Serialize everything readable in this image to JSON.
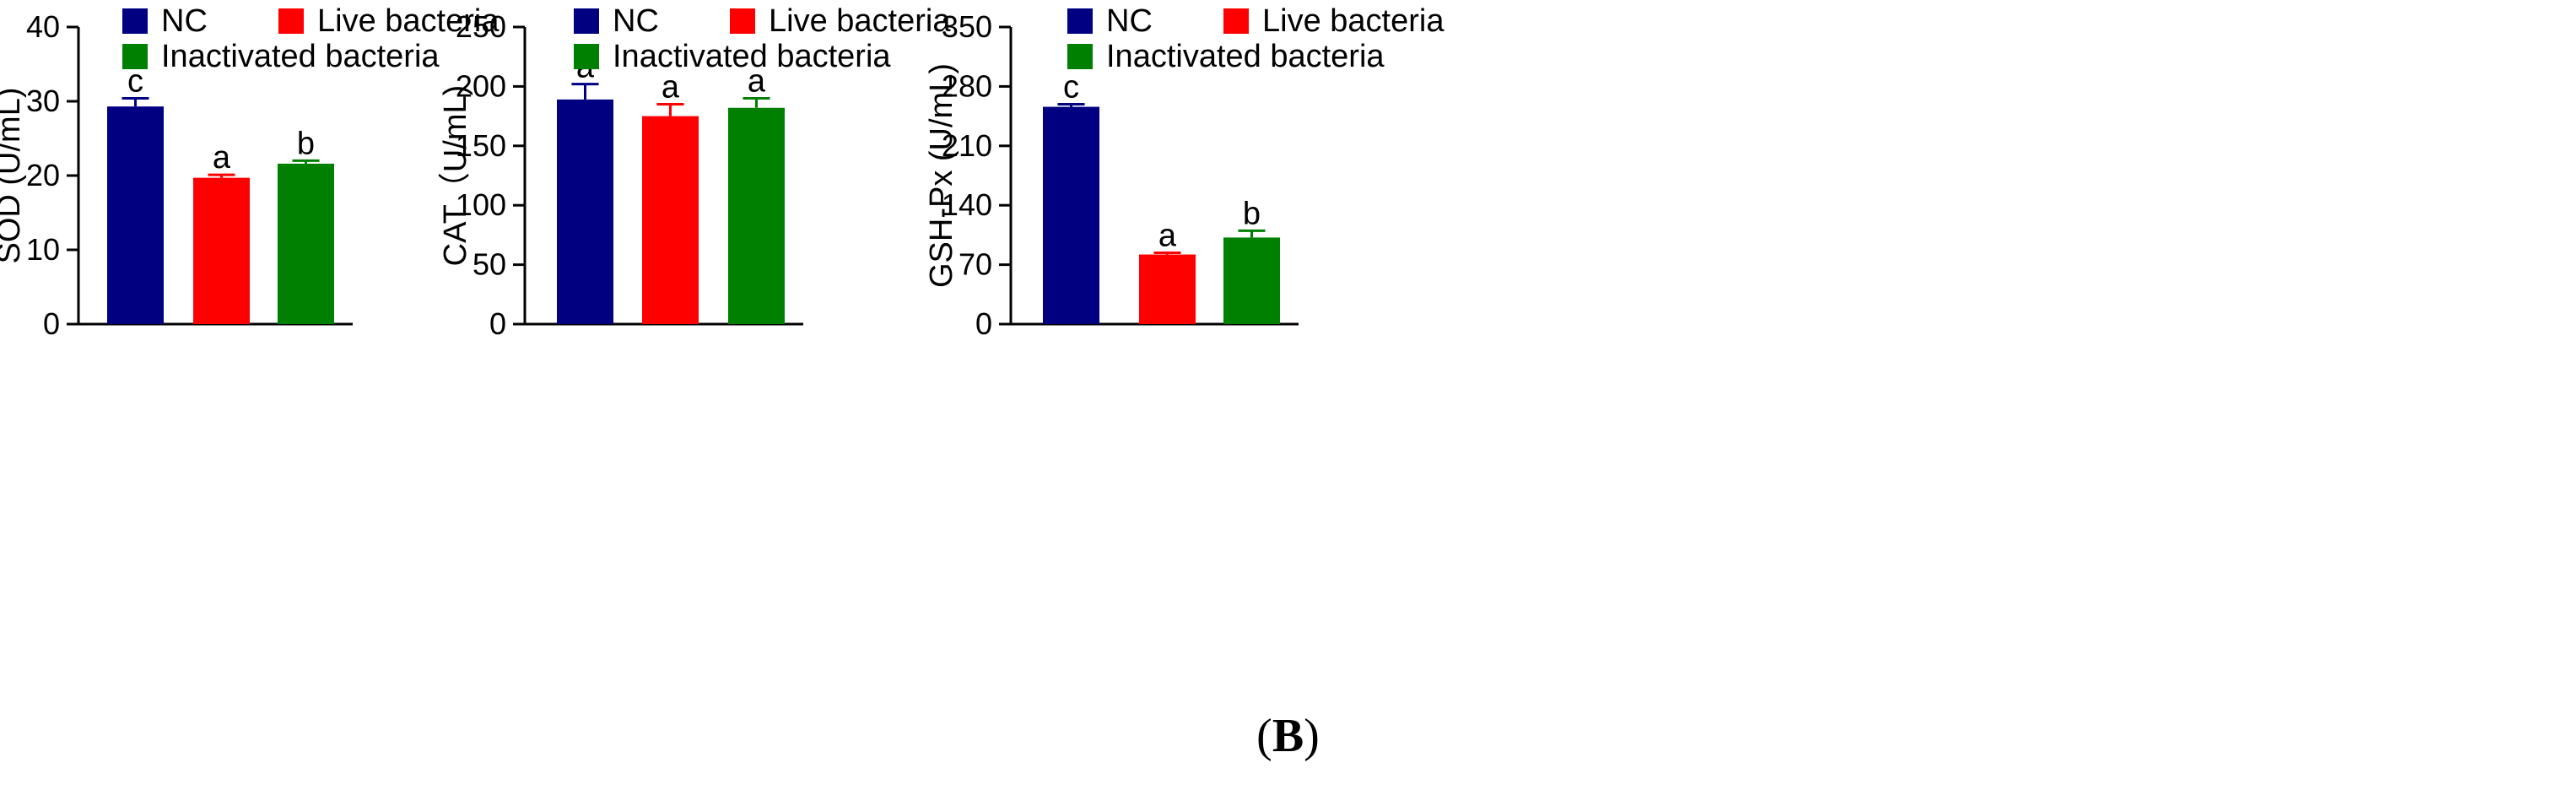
{
  "figure": {
    "panel_label_open": "(",
    "panel_label_letter": "B",
    "panel_label_close": ")"
  },
  "colors": {
    "NC": "#000080",
    "Live bacteria": "#ff0000",
    "Inactivated bacteria": "#008000",
    "axis": "#000000"
  },
  "legend": {
    "entries": [
      "NC",
      "Live bacteria",
      "Inactivated bacteria"
    ],
    "placement": "top-right"
  },
  "chart_data": [
    {
      "type": "bar",
      "ylabel": "SOD (U/mL)",
      "categories": [
        "NC",
        "Live bacteria",
        "Inactivated bacteria"
      ],
      "values": [
        29.3,
        19.7,
        21.6
      ],
      "errors": [
        1.1,
        0.4,
        0.4
      ],
      "letters": [
        "c",
        "a",
        "b"
      ],
      "ylim": [
        0,
        40
      ],
      "yticks": [
        0,
        10,
        20,
        30,
        40
      ],
      "grid": false
    },
    {
      "type": "bar",
      "ylabel": "CAT（U/mL)",
      "categories": [
        "NC",
        "Live bacteria",
        "Inactivated bacteria"
      ],
      "values": [
        189,
        175,
        182
      ],
      "errors": [
        13,
        10,
        8
      ],
      "letters": [
        "a",
        "a",
        "a"
      ],
      "ylim": [
        0,
        250
      ],
      "yticks": [
        0,
        50,
        100,
        150,
        200,
        250
      ],
      "grid": false
    },
    {
      "type": "bar",
      "ylabel": "GSH-Px (U/mL)",
      "categories": [
        "NC",
        "Live bacteria",
        "Inactivated bacteria"
      ],
      "values": [
        256,
        82,
        102
      ],
      "errors": [
        3,
        2,
        8
      ],
      "letters": [
        "c",
        "a",
        "b"
      ],
      "ylim": [
        0,
        350
      ],
      "yticks": [
        0,
        70,
        140,
        210,
        280,
        350
      ],
      "grid": false
    }
  ]
}
